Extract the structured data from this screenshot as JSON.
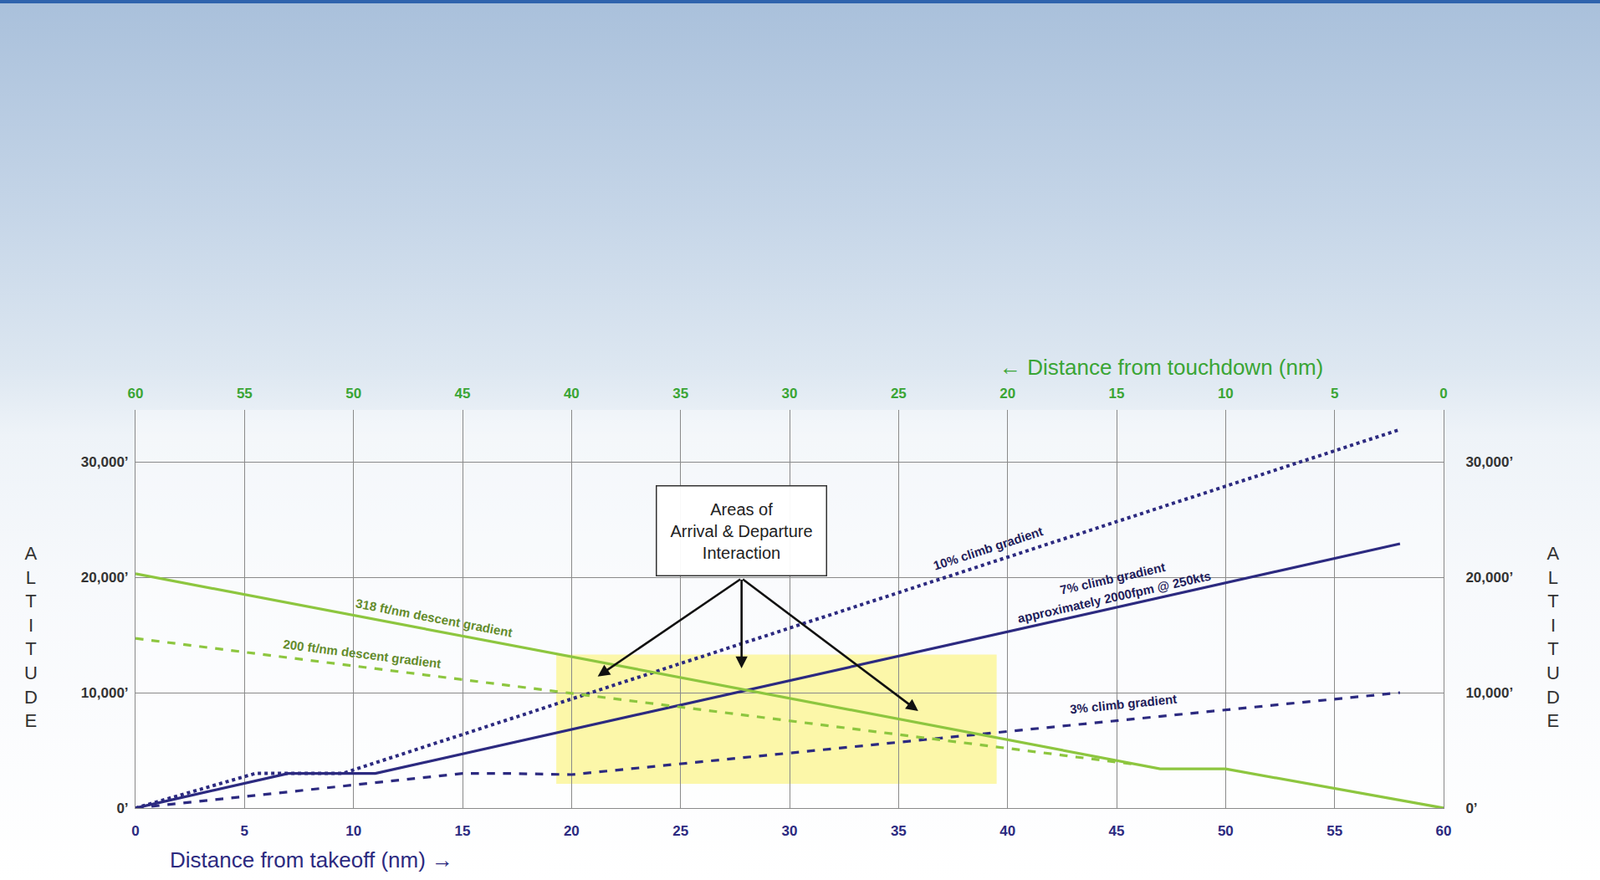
{
  "chart_data": {
    "type": "line",
    "x_title": "Distance from takeoff (nm) →",
    "x2_title": "← Distance from touchdown (nm)",
    "y_title": "ALTITUDE",
    "xlim": [
      0,
      60
    ],
    "xticks": [
      0,
      5,
      10,
      15,
      20,
      25,
      30,
      35,
      40,
      45,
      50,
      55,
      60
    ],
    "x2lim": [
      60,
      0
    ],
    "x2ticks": [
      60,
      55,
      50,
      45,
      40,
      35,
      30,
      25,
      20,
      15,
      10,
      5,
      0
    ],
    "ylim": [
      0,
      34500
    ],
    "yticks": [
      {
        "value": 0,
        "label": "0’"
      },
      {
        "value": 10000,
        "label": "10,000’"
      },
      {
        "value": 20000,
        "label": "20,000’"
      },
      {
        "value": 30000,
        "label": "30,000’"
      }
    ],
    "grid": true,
    "series": [
      {
        "name": "10% climb gradient",
        "color": "#2c2a80",
        "line_style": "dotted",
        "x": [
          0,
          5.5,
          9.5,
          58
        ],
        "values": [
          0,
          3000,
          3000,
          32800
        ],
        "label_x": 39.1,
        "label_y": 22500
      },
      {
        "name": "7% climb gradient",
        "color": "#2c2a80",
        "line_style": "solid",
        "x": [
          0,
          7,
          11,
          58
        ],
        "values": [
          0,
          3000,
          3000,
          22900
        ],
        "label_x": 44.8,
        "label_y": 19900
      },
      {
        "name": "3% climb gradient",
        "color": "#2c2a80",
        "line_style": "dashed",
        "x": [
          0,
          15,
          17,
          20,
          58
        ],
        "values": [
          0,
          3000,
          3000,
          2900,
          10000
        ],
        "label_x": 45.3,
        "label_y": 9000
      },
      {
        "name": "318 ft/nm descent gradient",
        "color": "#8dc63f",
        "line_style": "solid",
        "x": [
          0,
          47,
          50,
          60
        ],
        "values": [
          20300,
          3400,
          3400,
          0
        ],
        "label_x": 13.7,
        "label_y": 16500
      },
      {
        "name": "200 ft/nm descent gradient",
        "color": "#8dc63f",
        "line_style": "dashed",
        "x": [
          0,
          46
        ],
        "values": [
          14700,
          3750
        ],
        "label_x": 10.4,
        "label_y": 13400
      }
    ],
    "annotations": [
      {
        "text": "approximately 2000fpm @ 250kts",
        "x": 44.9,
        "y": 18300,
        "along": "7% climb gradient"
      }
    ],
    "highlight": {
      "x": [
        19.3,
        39.5
      ],
      "y": [
        2100,
        13300
      ],
      "color": "#fbf69a"
    },
    "callout": {
      "lines": [
        "Areas of",
        "Arrival & Departure",
        "Interaction"
      ],
      "x": 27.8,
      "y": 24000,
      "tail": {
        "x": 27.8,
        "y": 19900
      },
      "arrows": [
        {
          "x": 21.2,
          "y": 11400
        },
        {
          "x": 27.8,
          "y": 12100
        },
        {
          "x": 35.9,
          "y": 8400
        }
      ]
    }
  }
}
